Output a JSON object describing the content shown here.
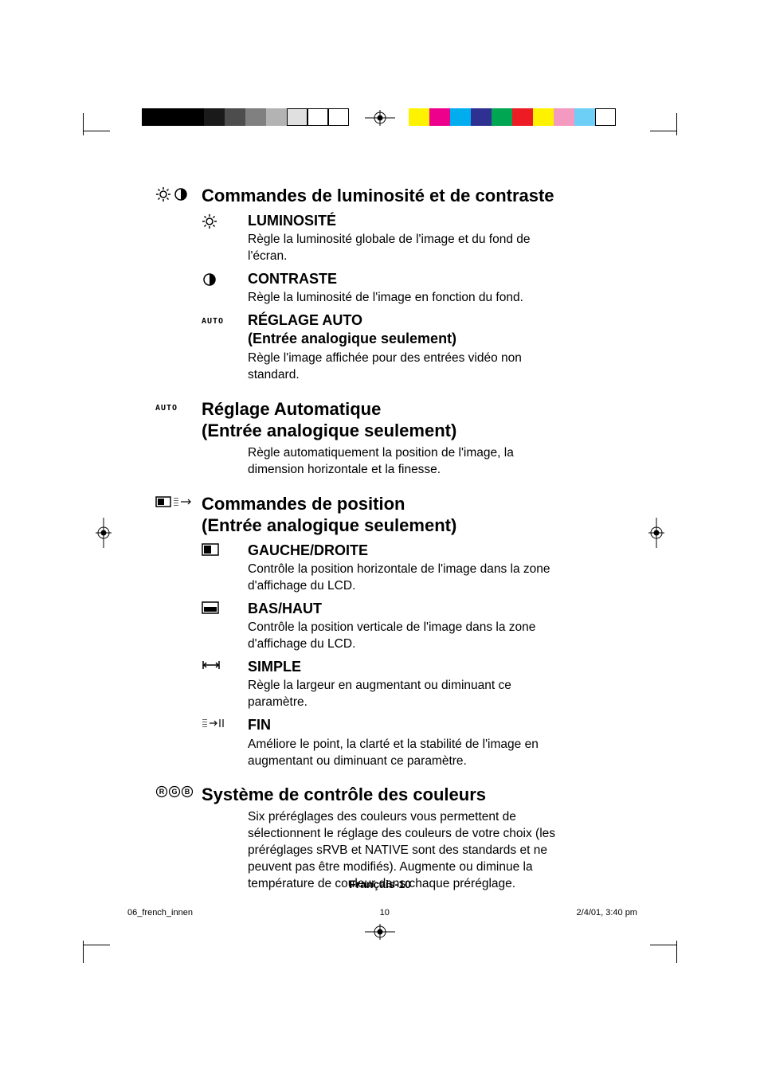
{
  "print_marks": {
    "grayscale_swatches": [
      "#000000",
      "#000000",
      "#000000",
      "#1a1a1a",
      "#4d4d4d",
      "#808080",
      "#b3b3b3",
      "#e0e0e0",
      "#ffffff",
      "#ffffff"
    ],
    "color_swatches": [
      "#fff200",
      "#ec008c",
      "#00aeef",
      "#2e3192",
      "#00a651",
      "#ed1c24",
      "#fff200",
      "#f49ac1",
      "#6dcff6",
      "#ffffff"
    ],
    "grayscale_borders": [
      "none",
      "none",
      "none",
      "none",
      "none",
      "none",
      "none",
      "1px solid #000",
      "1px solid #000",
      "1px solid #000"
    ]
  },
  "sections": [
    {
      "icon": "brightness-contrast",
      "title": "Commandes de luminosité et de contraste",
      "items": [
        {
          "icon": "sun",
          "title": "LUMINOSITÉ",
          "desc": "Règle la luminosité globale de l'image et du fond de l'écran."
        },
        {
          "icon": "half-circle",
          "title": "CONTRASTE",
          "desc": "Règle la luminosité de l'image en fonction du fond."
        },
        {
          "icon": "auto",
          "title": "RÉGLAGE AUTO",
          "subtitle": "(Entrée analogique seulement)",
          "desc": "Règle l'image affichée pour des entrées vidéo non standard."
        }
      ]
    },
    {
      "icon": "auto",
      "title": "Réglage Automatique",
      "title2": "(Entrée analogique seulement)",
      "desc": "Règle automatiquement la position de l'image, la dimension horizontale et la finesse."
    },
    {
      "icon": "position",
      "title": "Commandes de position",
      "title2": "(Entrée analogique seulement)",
      "items": [
        {
          "icon": "rect-h",
          "title": "GAUCHE/DROITE",
          "desc": "Contrôle la position horizontale de l'image dans la zone d'affichage du LCD."
        },
        {
          "icon": "rect-v",
          "title": "BAS/HAUT",
          "desc": "Contrôle la position verticale de l'image dans la zone d'affichage du LCD."
        },
        {
          "icon": "harrow",
          "title": "SIMPLE",
          "desc": "Règle la largeur en augmentant ou diminuant ce paramètre."
        },
        {
          "icon": "fine",
          "title": "FIN",
          "desc": "Améliore le point, la clarté et la stabilité de l'image en augmentant ou diminuant ce paramètre."
        }
      ]
    },
    {
      "icon": "rgb",
      "title": "Système de contrôle des couleurs",
      "desc": "Six préréglages des couleurs vous permettent de sélectionnent le réglage des couleurs de votre choix (les préréglages sRVB et NATIVE sont des standards et ne peuvent pas être modifiés). Augmente ou diminue la température de couleur dans chaque préréglage."
    }
  ],
  "footer": "Français-10",
  "meta": {
    "file": "06_french_innen",
    "page": "10",
    "date": "2/4/01, 3:40 pm"
  }
}
